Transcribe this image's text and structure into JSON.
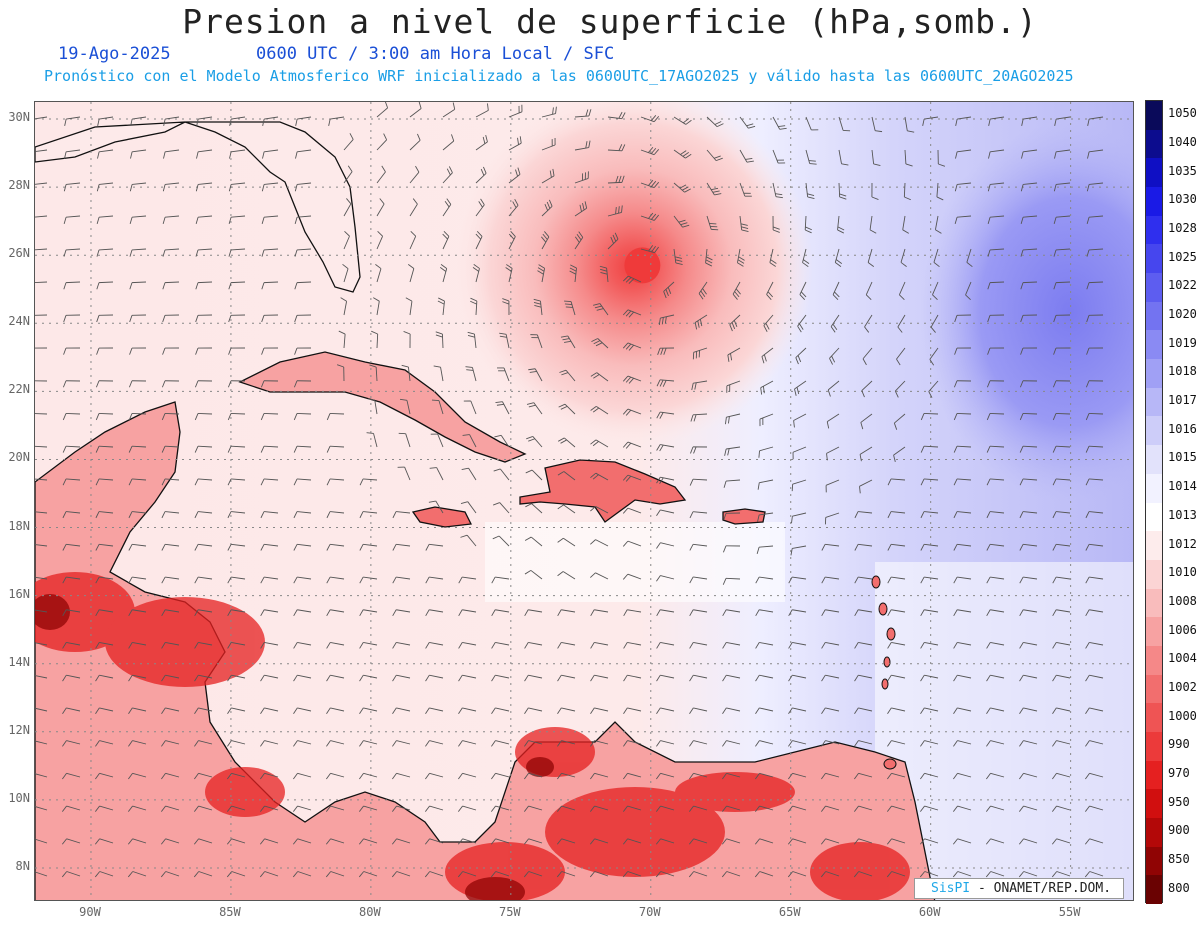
{
  "header": {
    "title": "Presion a nivel de superficie (hPa,somb.)",
    "date": "19-Ago-2025",
    "time": "0600 UTC / 3:00 am Hora Local / SFC",
    "forecast": "Pronóstico con el Modelo Atmosferico WRF inicializado a las 0600UTC_17AGO2025 y válido hasta las  0600UTC_20AGO2025"
  },
  "map": {
    "lat_labels": [
      "30N",
      "28N",
      "26N",
      "24N",
      "22N",
      "20N",
      "18N",
      "16N",
      "14N",
      "12N",
      "10N",
      "8N"
    ],
    "lon_labels": [
      "90W",
      "85W",
      "80W",
      "75W",
      "70W",
      "65W",
      "60W",
      "55W"
    ],
    "lat_range": [
      7,
      30.5
    ],
    "lon_range": [
      -92,
      -52.7
    ],
    "features": {
      "low_center": {
        "lat": 25.7,
        "lon": -70.3
      }
    }
  },
  "colorbar": {
    "levels": [
      "1050",
      "1040",
      "1035",
      "1030",
      "1028",
      "1025",
      "1022",
      "1020",
      "1019",
      "1018",
      "1017",
      "1016",
      "1015",
      "1014",
      "1013",
      "1012",
      "1010",
      "1008",
      "1006",
      "1004",
      "1002",
      "1000",
      "990",
      "970",
      "950",
      "900",
      "850",
      "800"
    ],
    "colors": [
      "#0a0a5a",
      "#0c0c8e",
      "#0f0fc4",
      "#1a1ae6",
      "#2f2fee",
      "#4646ee",
      "#5d5df0",
      "#7373f1",
      "#8a8af3",
      "#a0a0f5",
      "#b7b7f7",
      "#cdcdf9",
      "#e2e2fb",
      "#f2f2ff",
      "#ffffff",
      "#fdecec",
      "#fbd4d4",
      "#f9bcbc",
      "#f7a2a2",
      "#f58888",
      "#f26e6e",
      "#ef5454",
      "#ec3a3a",
      "#e52020",
      "#d10f0f",
      "#b30808",
      "#900404",
      "#6a0202"
    ]
  },
  "credit": {
    "brand": "SisPI",
    "org": "- ONAMET/REP.DOM."
  }
}
